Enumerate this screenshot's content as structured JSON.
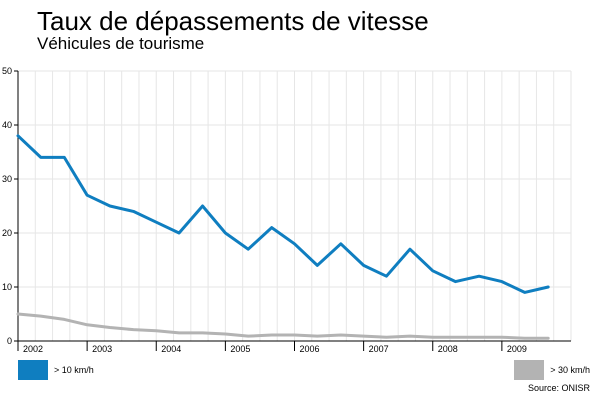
{
  "header": {
    "title": "Taux de dépassements de vitesse",
    "subtitle": "Véhicules de tourisme"
  },
  "source": "Source: ONISR",
  "colors": {
    "series_1": "#0f7ec0",
    "series_2": "#b3b3b3",
    "grid": "#e6e6e6",
    "axis": "#000000"
  },
  "chart_data": {
    "type": "line",
    "title": "Taux de dépassements de vitesse",
    "subtitle": "Véhicules de tourisme",
    "xlabel": "",
    "ylabel": "",
    "xlim": [
      2002,
      2010
    ],
    "ylim": [
      0,
      50
    ],
    "y_ticks": [
      0,
      10,
      20,
      30,
      40,
      50
    ],
    "x_ticks": [
      "2002",
      "2003",
      "2004",
      "2005",
      "2006",
      "2007",
      "2008",
      "2009"
    ],
    "grid": true,
    "legend_position": "bottom",
    "series": [
      {
        "name": "> 10 km/h",
        "x": [
          2002.0,
          2002.33,
          2002.67,
          2003.0,
          2003.33,
          2003.67,
          2004.0,
          2004.33,
          2004.67,
          2005.0,
          2005.33,
          2005.67,
          2006.0,
          2006.33,
          2006.67,
          2007.0,
          2007.33,
          2007.67,
          2008.0,
          2008.33,
          2008.67,
          2009.0,
          2009.33,
          2009.67
        ],
        "values": [
          38,
          34,
          34,
          27,
          25,
          24,
          22,
          20,
          25,
          20,
          17,
          21,
          18,
          14,
          18,
          14,
          12,
          17,
          13,
          11,
          12,
          11,
          9,
          10
        ]
      },
      {
        "name": "> 30 km/h",
        "x": [
          2002.0,
          2002.33,
          2002.67,
          2003.0,
          2003.33,
          2003.67,
          2004.0,
          2004.33,
          2004.67,
          2005.0,
          2005.33,
          2005.67,
          2006.0,
          2006.33,
          2006.67,
          2007.0,
          2007.33,
          2007.67,
          2008.0,
          2008.33,
          2008.67,
          2009.0,
          2009.33,
          2009.67
        ],
        "values": [
          5,
          4.6,
          4,
          3,
          2.5,
          2.1,
          1.9,
          1.5,
          1.5,
          1.3,
          0.9,
          1.1,
          1.1,
          0.9,
          1.1,
          0.9,
          0.7,
          0.9,
          0.7,
          0.7,
          0.7,
          0.7,
          0.5,
          0.5
        ]
      }
    ]
  }
}
